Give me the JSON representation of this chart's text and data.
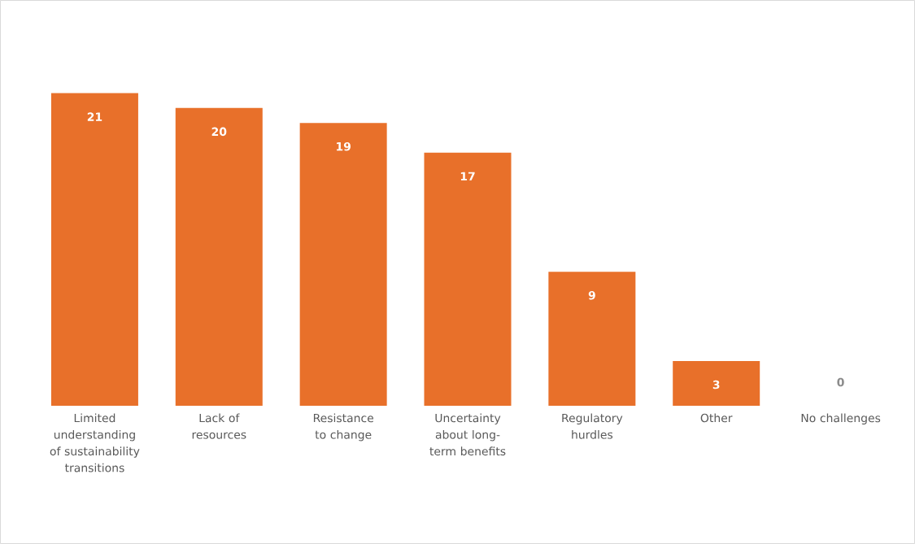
{
  "chart_data": {
    "type": "bar",
    "categories": [
      "Limited understanding of sustainability transitions",
      "Lack of resources",
      "Resistance to change",
      "Uncertainty about long-term benefits",
      "Regulatory hurdles",
      "Other",
      "No challenges"
    ],
    "values": [
      21,
      20,
      19,
      17,
      9,
      3,
      0
    ],
    "color": "#e8702a",
    "data_labels": true
  }
}
